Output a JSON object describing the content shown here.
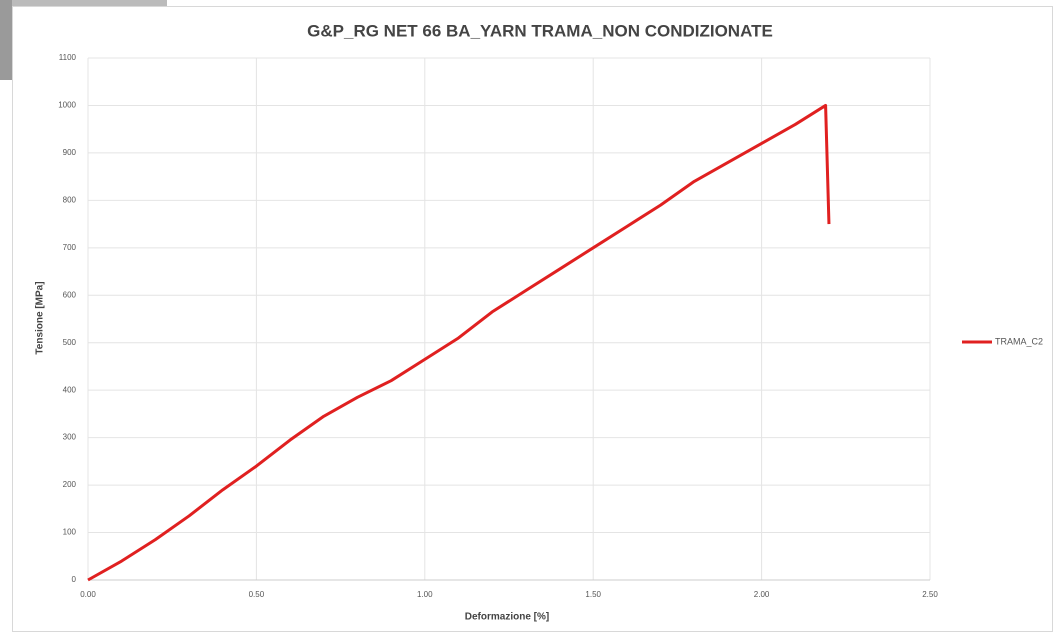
{
  "chart_data": {
    "type": "line",
    "title": "G&P_RG NET 66 BA_YARN TRAMA_NON CONDIZIONATE",
    "xlabel": "Deformazione [%]",
    "ylabel": "Tensione [MPa]",
    "x": [
      0,
      0.1,
      0.2,
      0.3,
      0.4,
      0.5,
      0.6,
      0.7,
      0.8,
      0.9,
      1.0,
      1.1,
      1.2,
      1.3,
      1.4,
      1.5,
      1.6,
      1.7,
      1.8,
      1.9,
      2.0,
      2.1,
      2.19,
      2.2
    ],
    "series": [
      {
        "name": "TRAMA_C2",
        "color": "#e02020",
        "values": [
          0,
          40,
          85,
          135,
          190,
          240,
          295,
          345,
          385,
          420,
          465,
          510,
          565,
          610,
          655,
          700,
          745,
          790,
          840,
          880,
          920,
          960,
          1000,
          750
        ]
      }
    ],
    "xlim": [
      0,
      2.5
    ],
    "xticks": [
      {
        "value": 0,
        "label": "0.00"
      },
      {
        "value": 0.5,
        "label": "0.50"
      },
      {
        "value": 1.0,
        "label": "1.00"
      },
      {
        "value": 1.5,
        "label": "1.50"
      },
      {
        "value": 2.0,
        "label": "2.00"
      },
      {
        "value": 2.5,
        "label": "2.50"
      }
    ],
    "ylim": [
      0,
      1100
    ],
    "yticks": [
      0,
      100,
      200,
      300,
      400,
      500,
      600,
      700,
      800,
      900,
      1000,
      1100
    ],
    "grid": true,
    "legend": "right"
  }
}
